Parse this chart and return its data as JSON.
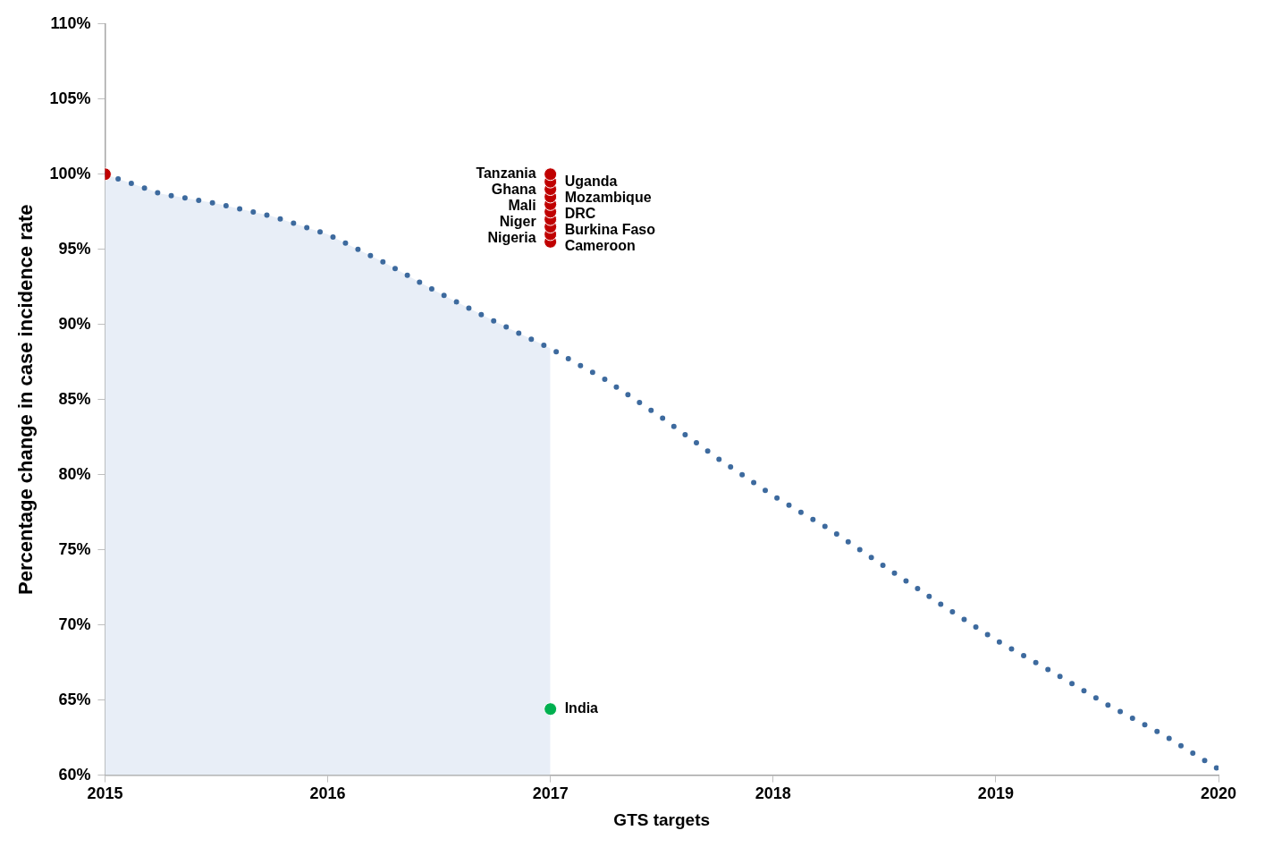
{
  "chart_data": {
    "type": "line",
    "xlabel": "GTS targets",
    "ylabel": "Percentage change in case incidence rate",
    "xlim": [
      2015,
      2020
    ],
    "xticks": [
      2015,
      2016,
      2017,
      2018,
      2019,
      2020
    ],
    "ylim": [
      60,
      110
    ],
    "yticks": [
      {
        "value": 60,
        "label": "60%"
      },
      {
        "value": 65,
        "label": "65%"
      },
      {
        "value": 70,
        "label": "70%"
      },
      {
        "value": 75,
        "label": "75%"
      },
      {
        "value": 80,
        "label": "80%"
      },
      {
        "value": 85,
        "label": "85%"
      },
      {
        "value": 90,
        "label": "90%"
      },
      {
        "value": 95,
        "label": "95%"
      },
      {
        "value": 100,
        "label": "100%"
      },
      {
        "value": 105,
        "label": "105%"
      },
      {
        "value": 110,
        "label": "110%"
      }
    ],
    "grid": false,
    "legend": false,
    "series": [
      {
        "type": "area",
        "color": "#e8eef7",
        "x": [
          2015,
          2015.25,
          2015.5,
          2015.75,
          2016,
          2016.25,
          2016.5,
          2016.75,
          2017
        ],
        "values": [
          100,
          98.7,
          98.05,
          97.2,
          96.0,
          94.15,
          92.1,
          90.2,
          88.4
        ]
      },
      {
        "color": "#3d6a9e",
        "line_style": "dotted",
        "marker": "none",
        "x": [
          2015,
          2015.25,
          2015.5,
          2015.75,
          2016,
          2016.25,
          2016.5,
          2016.75,
          2017,
          2017.25,
          2017.5,
          2017.75,
          2018,
          2018.25,
          2018.5,
          2018.75,
          2019,
          2019.25,
          2019.5,
          2019.75,
          2020
        ],
        "values": [
          100,
          98.7,
          98.05,
          97.2,
          96.0,
          94.15,
          92.1,
          90.2,
          88.4,
          86.3,
          83.8,
          81.1,
          78.6,
          76.4,
          73.9,
          71.4,
          69.0,
          66.9,
          64.7,
          62.7,
          60.4
        ]
      },
      {
        "type": "scatter",
        "color": "#c00000",
        "marker": "circle",
        "x": [
          2015
        ],
        "values": [
          100
        ]
      },
      {
        "type": "scatter",
        "name": "India",
        "color": "#00b050",
        "marker": "circle",
        "x": [
          2017
        ],
        "values": [
          64.4
        ]
      },
      {
        "type": "scatter",
        "name": "Tanzania",
        "color": "#c00000",
        "marker": "circle",
        "x": [
          2017
        ],
        "values": [
          100
        ]
      },
      {
        "type": "scatter",
        "name": "Uganda",
        "color": "#c00000",
        "marker": "circle",
        "x": [
          2017
        ],
        "values": [
          99.5
        ]
      },
      {
        "type": "scatter",
        "name": "Ghana",
        "color": "#c00000",
        "marker": "circle",
        "x": [
          2017
        ],
        "values": [
          99
        ]
      },
      {
        "type": "scatter",
        "name": "Mozambique",
        "color": "#c00000",
        "marker": "circle",
        "x": [
          2017
        ],
        "values": [
          98.5
        ]
      },
      {
        "type": "scatter",
        "name": "Mali",
        "color": "#c00000",
        "marker": "circle",
        "x": [
          2017
        ],
        "values": [
          98
        ]
      },
      {
        "type": "scatter",
        "name": "DRC",
        "color": "#c00000",
        "marker": "circle",
        "x": [
          2017
        ],
        "values": [
          97.5
        ]
      },
      {
        "type": "scatter",
        "name": "Niger",
        "color": "#c00000",
        "marker": "circle",
        "x": [
          2017
        ],
        "values": [
          97
        ]
      },
      {
        "type": "scatter",
        "name": "Burkina Faso",
        "color": "#c00000",
        "marker": "circle",
        "x": [
          2017
        ],
        "values": [
          96.5
        ]
      },
      {
        "type": "scatter",
        "name": "Nigeria",
        "color": "#c00000",
        "marker": "circle",
        "x": [
          2017
        ],
        "values": [
          96
        ]
      },
      {
        "type": "scatter",
        "name": "Cameroon",
        "color": "#c00000",
        "marker": "circle",
        "x": [
          2017
        ],
        "values": [
          95.5
        ]
      }
    ]
  }
}
